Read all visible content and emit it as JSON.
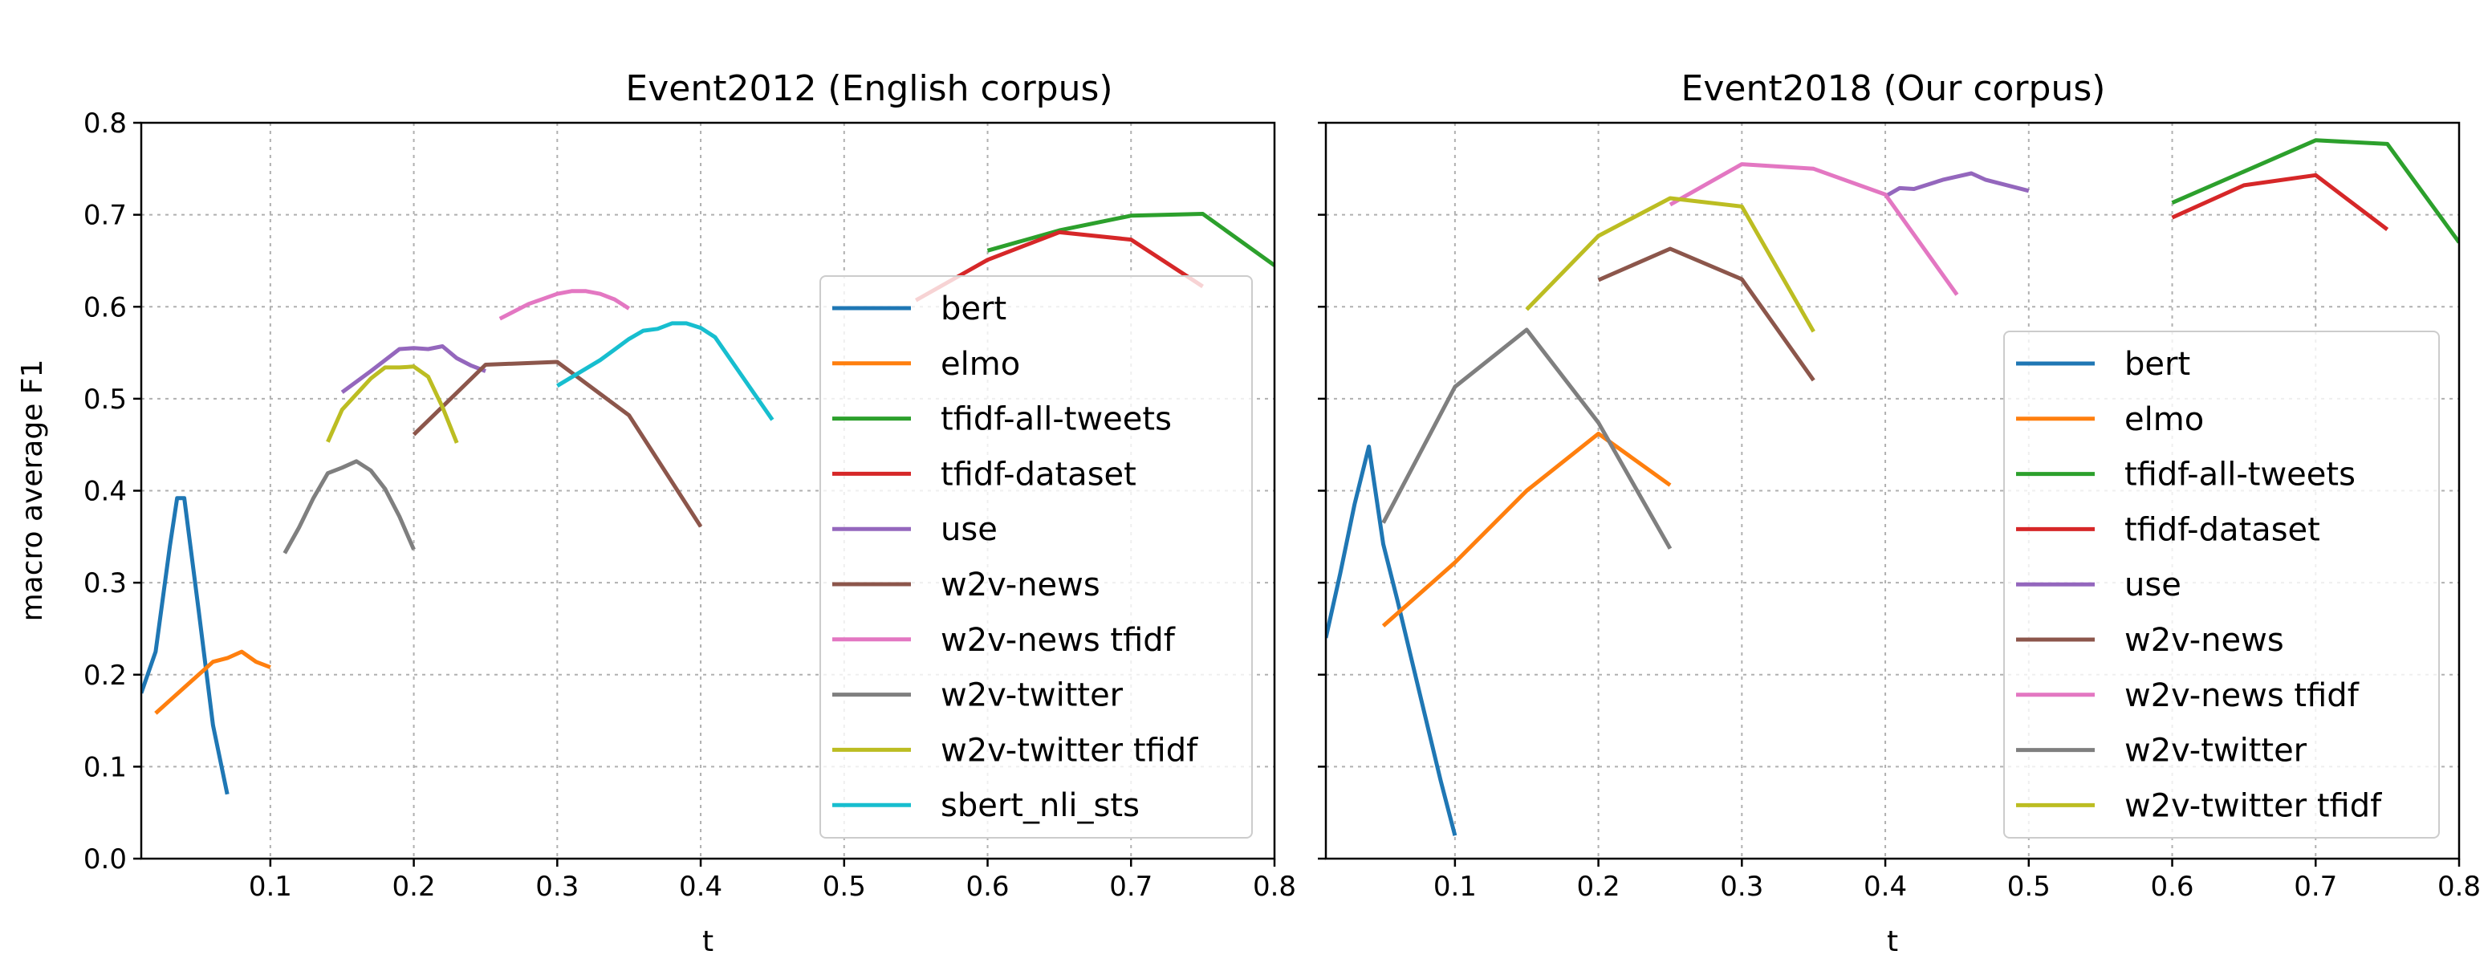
{
  "chart_data": [
    {
      "type": "line",
      "title": "Event2012 (English corpus)",
      "xlabel": "t",
      "ylabel": "macro average F1",
      "xlim": [
        0.01,
        0.8
      ],
      "ylim": [
        0.0,
        0.8
      ],
      "xticks": [
        "0.1",
        "0.2",
        "0.3",
        "0.4",
        "0.5",
        "0.6",
        "0.7",
        "0.8"
      ],
      "yticks": [
        "0.0",
        "0.1",
        "0.2",
        "0.3",
        "0.4",
        "0.5",
        "0.6",
        "0.7",
        "0.8"
      ],
      "grid": true,
      "legend_position": "lower-right",
      "series": [
        {
          "name": "bert",
          "color": "#1f77b4",
          "x": [
            0.01,
            0.02,
            0.03,
            0.035,
            0.04,
            0.05,
            0.06,
            0.07
          ],
          "y": [
            0.18,
            0.225,
            0.34,
            0.392,
            0.392,
            0.27,
            0.145,
            0.07
          ]
        },
        {
          "name": "elmo",
          "color": "#ff7f0e",
          "x": [
            0.02,
            0.03,
            0.04,
            0.05,
            0.06,
            0.07,
            0.08,
            0.09,
            0.1
          ],
          "y": [
            0.158,
            0.172,
            0.186,
            0.2,
            0.214,
            0.218,
            0.225,
            0.214,
            0.208
          ]
        },
        {
          "name": "tfidf-all-tweets",
          "color": "#2ca02c",
          "x": [
            0.6,
            0.65,
            0.7,
            0.75,
            0.8
          ],
          "y": [
            0.661,
            0.683,
            0.699,
            0.701,
            0.645
          ]
        },
        {
          "name": "tfidf-dataset",
          "color": "#d62728",
          "x": [
            0.55,
            0.6,
            0.65,
            0.7,
            0.75
          ],
          "y": [
            0.607,
            0.651,
            0.681,
            0.673,
            0.622
          ]
        },
        {
          "name": "use",
          "color": "#9467bd",
          "x": [
            0.15,
            0.17,
            0.19,
            0.2,
            0.21,
            0.22,
            0.23,
            0.24,
            0.25
          ],
          "y": [
            0.507,
            0.53,
            0.554,
            0.555,
            0.554,
            0.557,
            0.544,
            0.536,
            0.53
          ]
        },
        {
          "name": "w2v-news",
          "color": "#8c564b",
          "x": [
            0.2,
            0.25,
            0.3,
            0.35,
            0.4
          ],
          "y": [
            0.461,
            0.537,
            0.54,
            0.482,
            0.361
          ]
        },
        {
          "name": "w2v-news tfidf",
          "color": "#e377c2",
          "x": [
            0.26,
            0.28,
            0.3,
            0.31,
            0.32,
            0.33,
            0.34,
            0.35
          ],
          "y": [
            0.587,
            0.603,
            0.614,
            0.617,
            0.617,
            0.614,
            0.608,
            0.598
          ]
        },
        {
          "name": "w2v-twitter",
          "color": "#7f7f7f",
          "x": [
            0.11,
            0.12,
            0.13,
            0.14,
            0.15,
            0.16,
            0.17,
            0.18,
            0.19,
            0.2
          ],
          "y": [
            0.332,
            0.36,
            0.392,
            0.419,
            0.425,
            0.432,
            0.422,
            0.402,
            0.372,
            0.336
          ]
        },
        {
          "name": "w2v-twitter tfidf",
          "color": "#bcbd22",
          "x": [
            0.14,
            0.15,
            0.17,
            0.18,
            0.19,
            0.2,
            0.21,
            0.22,
            0.23
          ],
          "y": [
            0.453,
            0.488,
            0.522,
            0.534,
            0.534,
            0.535,
            0.524,
            0.491,
            0.452
          ]
        },
        {
          "name": "sbert_nli_sts",
          "color": "#17becf",
          "x": [
            0.3,
            0.33,
            0.35,
            0.36,
            0.37,
            0.38,
            0.39,
            0.4,
            0.41,
            0.45
          ],
          "y": [
            0.514,
            0.542,
            0.565,
            0.574,
            0.576,
            0.582,
            0.582,
            0.577,
            0.567,
            0.477
          ]
        }
      ]
    },
    {
      "type": "line",
      "title": "Event2018 (Our corpus)",
      "xlabel": "t",
      "ylabel": "",
      "xlim": [
        0.01,
        0.8
      ],
      "ylim": [
        0.0,
        0.8
      ],
      "xticks": [
        "0.1",
        "0.2",
        "0.3",
        "0.4",
        "0.5",
        "0.6",
        "0.7",
        "0.8"
      ],
      "yticks": [
        "0.0",
        "0.1",
        "0.2",
        "0.3",
        "0.4",
        "0.5",
        "0.6",
        "0.7",
        "0.8"
      ],
      "grid": true,
      "legend_position": "lower-right",
      "series": [
        {
          "name": "bert",
          "color": "#1f77b4",
          "x": [
            0.01,
            0.02,
            0.03,
            0.04,
            0.05,
            0.06,
            0.07,
            0.08,
            0.09,
            0.1
          ],
          "y": [
            0.24,
            0.31,
            0.385,
            0.448,
            0.342,
            0.28,
            0.215,
            0.15,
            0.085,
            0.025
          ]
        },
        {
          "name": "elmo",
          "color": "#ff7f0e",
          "x": [
            0.05,
            0.1,
            0.15,
            0.2,
            0.25
          ],
          "y": [
            0.253,
            0.322,
            0.4,
            0.462,
            0.406
          ]
        },
        {
          "name": "tfidf-all-tweets",
          "color": "#2ca02c",
          "x": [
            0.6,
            0.65,
            0.7,
            0.75,
            0.8
          ],
          "y": [
            0.713,
            0.747,
            0.781,
            0.777,
            0.67
          ]
        },
        {
          "name": "tfidf-dataset",
          "color": "#d62728",
          "x": [
            0.6,
            0.65,
            0.7,
            0.75
          ],
          "y": [
            0.697,
            0.732,
            0.743,
            0.684
          ]
        },
        {
          "name": "use",
          "color": "#9467bd",
          "x": [
            0.4,
            0.41,
            0.42,
            0.44,
            0.46,
            0.47,
            0.5
          ],
          "y": [
            0.72,
            0.729,
            0.728,
            0.738,
            0.745,
            0.738,
            0.726
          ]
        },
        {
          "name": "w2v-news",
          "color": "#8c564b",
          "x": [
            0.2,
            0.25,
            0.3,
            0.35
          ],
          "y": [
            0.629,
            0.663,
            0.63,
            0.52
          ]
        },
        {
          "name": "w2v-news tfidf",
          "color": "#e377c2",
          "x": [
            0.25,
            0.3,
            0.35,
            0.4,
            0.45
          ],
          "y": [
            0.711,
            0.755,
            0.75,
            0.722,
            0.613
          ]
        },
        {
          "name": "w2v-twitter",
          "color": "#7f7f7f",
          "x": [
            0.05,
            0.1,
            0.15,
            0.2,
            0.25
          ],
          "y": [
            0.365,
            0.513,
            0.575,
            0.474,
            0.337
          ]
        },
        {
          "name": "w2v-twitter tfidf",
          "color": "#bcbd22",
          "x": [
            0.15,
            0.2,
            0.25,
            0.3,
            0.35
          ],
          "y": [
            0.597,
            0.677,
            0.718,
            0.709,
            0.573
          ]
        }
      ]
    }
  ]
}
